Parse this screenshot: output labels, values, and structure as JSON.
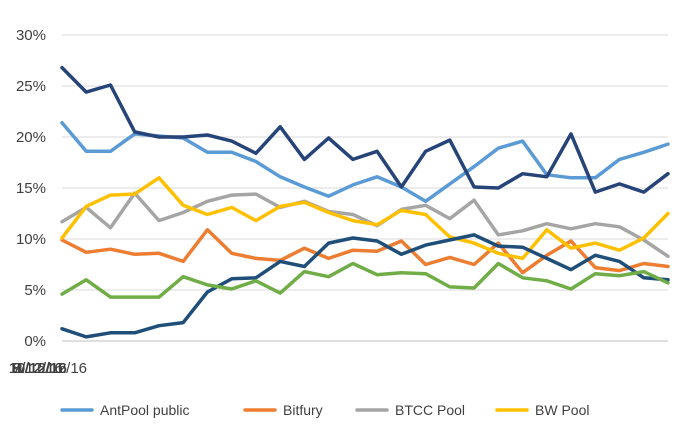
{
  "chart_data": {
    "type": "line",
    "title": "",
    "xlabel": "",
    "ylabel": "",
    "ylim": [
      0,
      30
    ],
    "yticks": [
      "0%",
      "5%",
      "10%",
      "15%",
      "20%",
      "25%",
      "30%"
    ],
    "xticks": [
      "6/12/16",
      "7/12/16",
      "8/12/16",
      "9/12/16",
      "10/12/16",
      "11/12/16"
    ],
    "x": [
      "6/12/16",
      "6/19/16",
      "6/26/16",
      "7/3/16",
      "7/10/16",
      "7/17/16",
      "7/24/16",
      "7/31/16",
      "8/7/16",
      "8/14/16",
      "8/21/16",
      "8/28/16",
      "9/4/16",
      "9/11/16",
      "9/18/16",
      "9/25/16",
      "10/2/16",
      "10/9/16",
      "10/16/16",
      "10/23/16",
      "10/30/16",
      "11/6/16",
      "11/13/16",
      "11/20/16",
      "11/27/16",
      "12/4/16"
    ],
    "grid": true,
    "legend_position": "bottom",
    "series": [
      {
        "name": "AntPool public",
        "color": "#5b9bd5",
        "values": [
          21.4,
          18.6,
          18.6,
          20.3,
          20.1,
          19.9,
          18.5,
          18.5,
          17.6,
          16.1,
          15.1,
          14.2,
          15.3,
          16.1,
          15.1,
          13.7,
          15.4,
          17.1,
          18.9,
          19.6,
          16.3,
          16.0,
          16.0,
          17.8,
          18.5,
          19.3
        ]
      },
      {
        "name": "Bitfury",
        "color": "#ed7d31",
        "values": [
          9.9,
          8.7,
          9.0,
          8.5,
          8.6,
          7.8,
          10.9,
          8.6,
          8.1,
          7.9,
          9.1,
          8.1,
          8.9,
          8.8,
          9.8,
          7.5,
          8.2,
          7.5,
          9.6,
          6.7,
          8.4,
          9.8,
          7.2,
          6.9,
          7.6,
          7.3
        ]
      },
      {
        "name": "BTCC Pool",
        "color": "#a5a5a5",
        "values": [
          11.7,
          13.1,
          11.1,
          14.5,
          11.8,
          12.6,
          13.7,
          14.3,
          14.4,
          13.1,
          13.7,
          12.7,
          12.4,
          11.3,
          12.9,
          13.3,
          12.0,
          13.8,
          10.4,
          10.8,
          11.5,
          11.0,
          11.5,
          11.2,
          9.9,
          8.3
        ]
      },
      {
        "name": "BW Pool",
        "color": "#ffc000",
        "values": [
          10.1,
          13.2,
          14.3,
          14.4,
          16.0,
          13.3,
          12.4,
          13.1,
          11.8,
          13.2,
          13.6,
          12.6,
          11.8,
          11.4,
          12.8,
          12.4,
          10.2,
          9.6,
          8.6,
          8.1,
          10.9,
          9.1,
          9.6,
          8.9,
          10.1,
          12.5
        ]
      },
      {
        "name": "",
        "color": "#264478",
        "values": [
          26.8,
          24.4,
          25.1,
          20.5,
          20.0,
          20.0,
          20.2,
          19.6,
          18.4,
          21.0,
          17.8,
          19.9,
          17.8,
          18.6,
          15.1,
          18.6,
          19.7,
          15.1,
          15.0,
          16.4,
          16.1,
          20.3,
          14.6,
          15.4,
          14.6,
          16.4
        ]
      },
      {
        "name": "",
        "color": "#1f4e79",
        "values": [
          1.2,
          0.4,
          0.8,
          0.8,
          1.5,
          1.8,
          4.8,
          6.1,
          6.2,
          7.8,
          7.3,
          9.6,
          10.1,
          9.8,
          8.5,
          9.4,
          9.9,
          10.4,
          9.3,
          9.2,
          8.1,
          7.0,
          8.4,
          7.8,
          6.2,
          6.0
        ]
      },
      {
        "name": "",
        "color": "#70ad47",
        "values": [
          4.6,
          6.0,
          4.3,
          4.3,
          4.3,
          6.3,
          5.5,
          5.1,
          5.9,
          4.7,
          6.8,
          6.3,
          7.6,
          6.5,
          6.7,
          6.6,
          5.3,
          5.2,
          7.6,
          6.2,
          5.9,
          5.1,
          6.6,
          6.4,
          6.8,
          5.7
        ]
      }
    ]
  }
}
